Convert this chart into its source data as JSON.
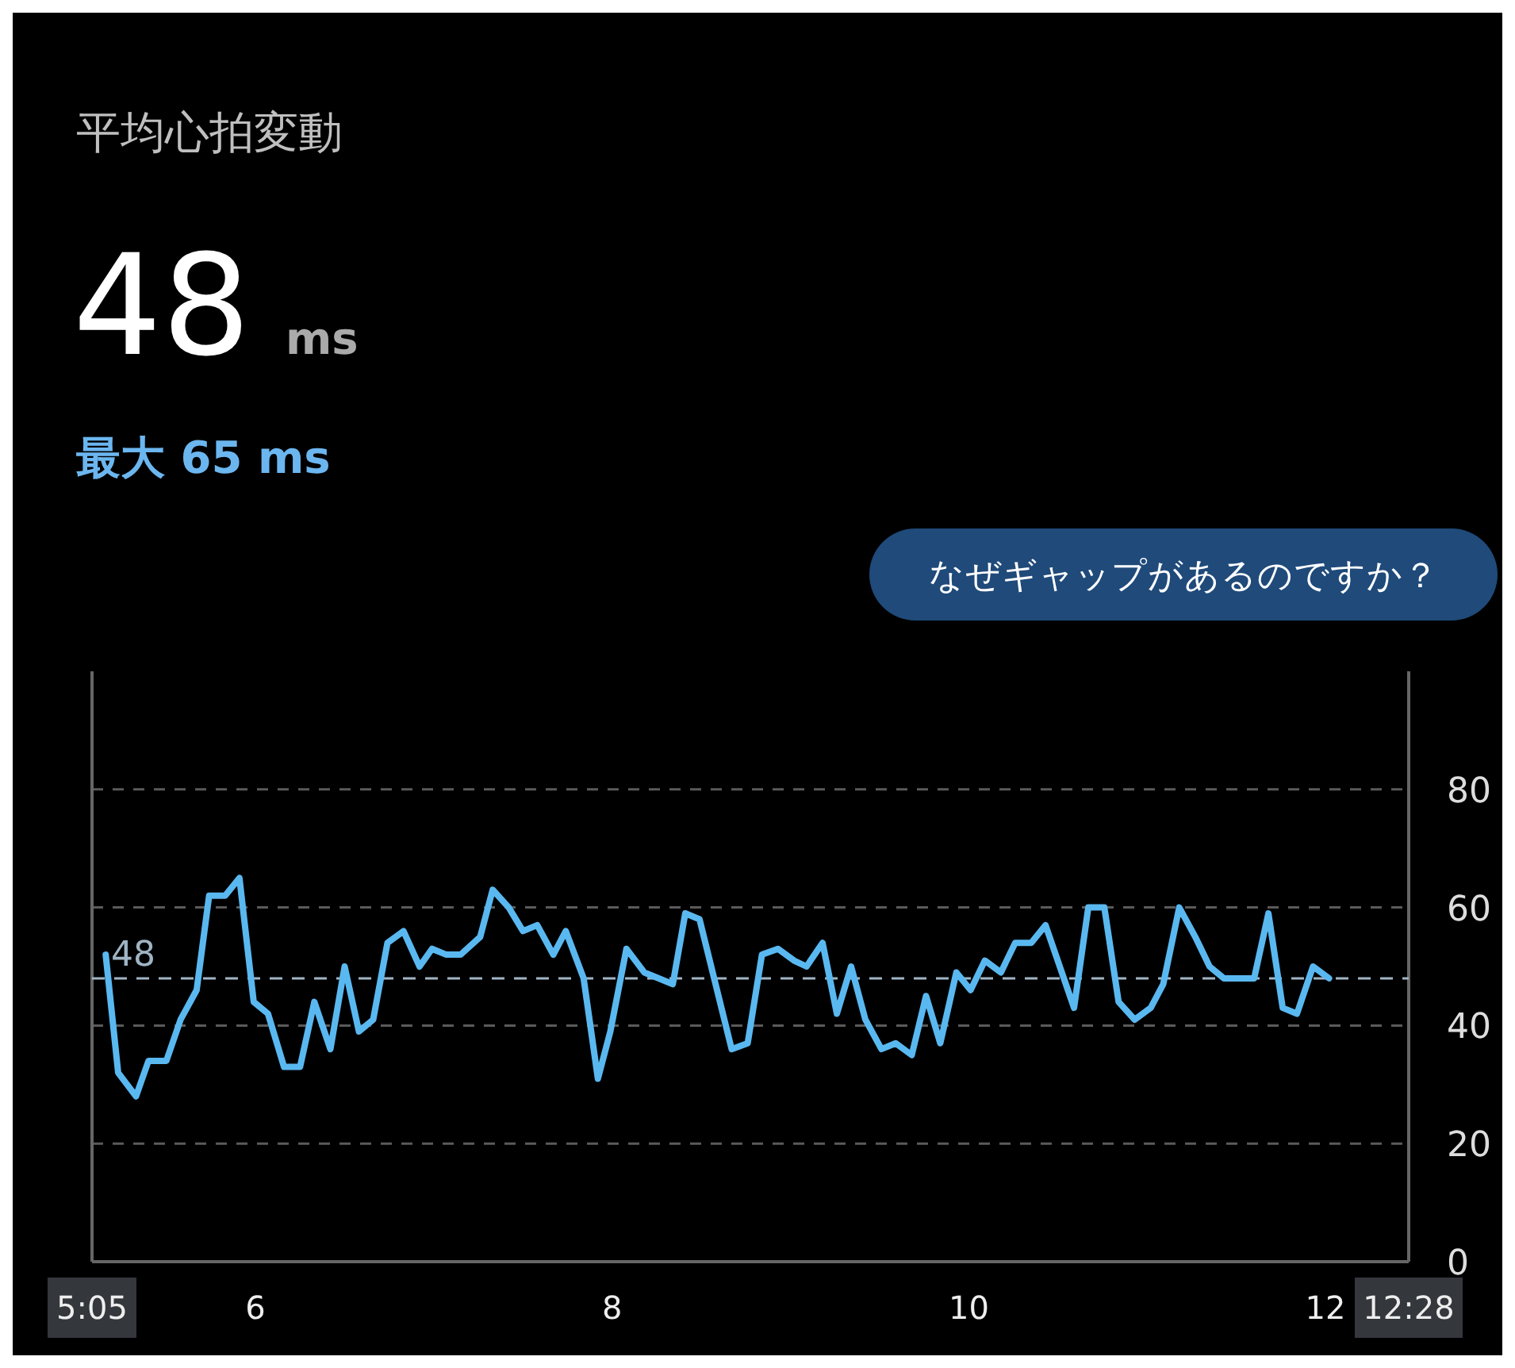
{
  "chart_data": {
    "type": "line",
    "title": "平均心拍変動",
    "annotations": [
      "48",
      "ms",
      "最大 65 ms",
      "なぜギャップがあるのですか？"
    ],
    "x": [
      5.16,
      5.23,
      5.33,
      5.4,
      5.5,
      5.58,
      5.67,
      5.74,
      5.83,
      5.91,
      5.99,
      6.07,
      6.16,
      6.25,
      6.33,
      6.42,
      6.5,
      6.58,
      6.66,
      6.74,
      6.83,
      6.92,
      6.99,
      7.07,
      7.15,
      7.26,
      7.33,
      7.42,
      7.5,
      7.58,
      7.67,
      7.74,
      7.84,
      7.92,
      7.99,
      8.08,
      8.18,
      8.34,
      8.41,
      8.49,
      8.67,
      8.76,
      8.84,
      8.93,
      9.02,
      9.09,
      9.18,
      9.26,
      9.34,
      9.42,
      9.51,
      9.59,
      9.68,
      9.76,
      9.84,
      9.93,
      10.01,
      10.09,
      10.18,
      10.26,
      10.35,
      10.43,
      10.59,
      10.67,
      10.76,
      10.84,
      10.93,
      11.02,
      11.09,
      11.18,
      11.27,
      11.35,
      11.43,
      11.52,
      11.6,
      11.68,
      11.76,
      11.84,
      11.93,
      12.02
    ],
    "series": [
      {
        "color": "#5ab8f0",
        "values": [
          52,
          32,
          28,
          34,
          34,
          41,
          46,
          62,
          62,
          65,
          44,
          42,
          33,
          33,
          44,
          36,
          50,
          39,
          41,
          54,
          56,
          50,
          53,
          52,
          52,
          55,
          63,
          60,
          56,
          57,
          52,
          56,
          48,
          31,
          39,
          53,
          49,
          47,
          59,
          58,
          36,
          37,
          52,
          53,
          51,
          50,
          54,
          42,
          50,
          41,
          36,
          37,
          35,
          45,
          37,
          49,
          46,
          51,
          49,
          54,
          54,
          57,
          43,
          60,
          60,
          44,
          41,
          43,
          47,
          60,
          55,
          50,
          48,
          48,
          48,
          59,
          43,
          42,
          50,
          48
        ]
      }
    ],
    "xlim": [
      5.0833,
      12.4667
    ],
    "xticks": [
      {
        "value": 5.0833,
        "label": "5:05"
      },
      6,
      8,
      10,
      12,
      {
        "value": 12.4667,
        "label": "12:28"
      }
    ],
    "ylim": [
      0,
      100
    ],
    "yticks": [
      0,
      20,
      40,
      60,
      80
    ],
    "grid": "y",
    "marker": "none",
    "line_style": "solid",
    "ref_lines": [
      {
        "axis": "y",
        "value": 48,
        "label": "48",
        "color": "#9fb4c4",
        "line_style": "dashed"
      }
    ]
  }
}
